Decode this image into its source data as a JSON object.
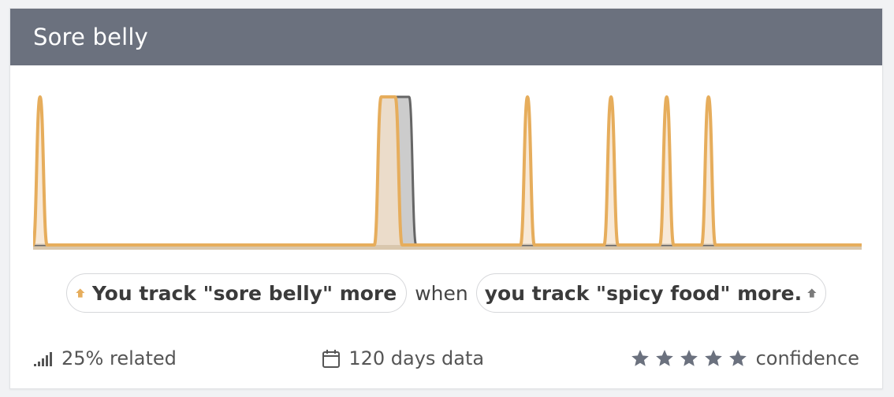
{
  "card": {
    "title": "Sore belly"
  },
  "colors": {
    "header": "#6b717e",
    "accent_orange": "#e6ad5c",
    "orange_fill": "#f5e2c9",
    "gray_line": "#666666",
    "gray_fill": "#cccccc",
    "arrow_gray": "#7a7a7a",
    "star": "#6b717e"
  },
  "chart_data": {
    "type": "area",
    "x": [
      0,
      1,
      2,
      3,
      4,
      5,
      6,
      7,
      8,
      9,
      10,
      11,
      12,
      13,
      14,
      15,
      16,
      17,
      18,
      19,
      20,
      21,
      22,
      23,
      24,
      25,
      26,
      27,
      28,
      29,
      30,
      31,
      32,
      33,
      34,
      35,
      36,
      37,
      38,
      39,
      40,
      41,
      42,
      43,
      44,
      45,
      46,
      47,
      48,
      49,
      50,
      51,
      52,
      53,
      54,
      55,
      56,
      57,
      58,
      59,
      60,
      61,
      62,
      63,
      64,
      65,
      66,
      67,
      68,
      69,
      70,
      71,
      72,
      73,
      74,
      75,
      76,
      77,
      78,
      79,
      80,
      81,
      82,
      83,
      84,
      85,
      86,
      87,
      88,
      89,
      90,
      91,
      92,
      93,
      94,
      95,
      96,
      97,
      98,
      99,
      100,
      101,
      102,
      103,
      104,
      105,
      106,
      107,
      108,
      109,
      110,
      111,
      112,
      113,
      114,
      115,
      116,
      117,
      118,
      119
    ],
    "series": [
      {
        "values": [
          0,
          0,
          0,
          0,
          0,
          0,
          0,
          0,
          0,
          0,
          0,
          0,
          0,
          0,
          0,
          0,
          0,
          0,
          0,
          0,
          0,
          0,
          0,
          0,
          0,
          0,
          0,
          0,
          0,
          0,
          0,
          0,
          0,
          0,
          0,
          0,
          0,
          0,
          0,
          0,
          0,
          0,
          0,
          0,
          0,
          0,
          0,
          0,
          0,
          0,
          1,
          1,
          1,
          1,
          1,
          0,
          0,
          0,
          0,
          0,
          0,
          0,
          0,
          0,
          0,
          0,
          0,
          0,
          0,
          0,
          0,
          0,
          0,
          0,
          0,
          0,
          0,
          0,
          0,
          0,
          0,
          0,
          0,
          0,
          0,
          0,
          0,
          0,
          0,
          0,
          0,
          0,
          0,
          0,
          0,
          0,
          0,
          0,
          0,
          0,
          0,
          0,
          0,
          0,
          0,
          0,
          0,
          0,
          0,
          0,
          0,
          0,
          0,
          0,
          0,
          0,
          0,
          0,
          0,
          0
        ]
      },
      {
        "values": [
          0,
          1,
          0,
          0,
          0,
          0,
          0,
          0,
          0,
          0,
          0,
          0,
          0,
          0,
          0,
          0,
          0,
          0,
          0,
          0,
          0,
          0,
          0,
          0,
          0,
          0,
          0,
          0,
          0,
          0,
          0,
          0,
          0,
          0,
          0,
          0,
          0,
          0,
          0,
          0,
          0,
          0,
          0,
          0,
          0,
          0,
          0,
          0,
          0,
          0,
          1,
          1,
          1,
          0,
          0,
          0,
          0,
          0,
          0,
          0,
          0,
          0,
          0,
          0,
          0,
          0,
          0,
          0,
          0,
          0,
          0,
          1,
          0,
          0,
          0,
          0,
          0,
          0,
          0,
          0,
          0,
          0,
          0,
          1,
          0,
          0,
          0,
          0,
          0,
          0,
          0,
          1,
          0,
          0,
          0,
          0,
          0,
          1,
          0,
          0,
          0,
          0,
          0,
          0,
          0,
          0,
          0,
          0,
          0,
          0,
          0,
          0,
          0,
          0,
          0,
          0,
          0,
          0,
          0,
          0
        ]
      }
    ],
    "ylim": [
      0,
      1
    ]
  },
  "insight": {
    "left_text": "You track \"sore belly\" more",
    "connector": "when",
    "right_text": "you track \"spicy food\" more."
  },
  "footer": {
    "related": "25% related",
    "days": "120 days data",
    "stars_filled": 5,
    "stars_total": 5,
    "confidence": "confidence"
  }
}
